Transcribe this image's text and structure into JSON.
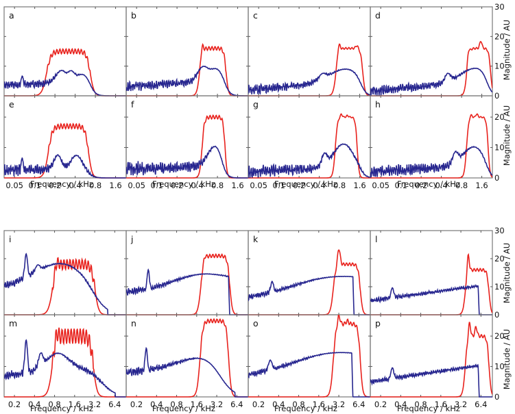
{
  "chart_data": {
    "type": "line",
    "title": "",
    "colors": {
      "red": "#e8211c",
      "blue": "#27268f",
      "axis": "#777777"
    },
    "legend": "none",
    "grid": false,
    "ylabel": "Magnitude / AU",
    "xlabel": "Frequency / kHz",
    "ylim": [
      0,
      30
    ],
    "yticks": [
      "0",
      "10",
      "20",
      "30"
    ],
    "xscale": "log",
    "groups": [
      {
        "name": "top",
        "xlim": [
          0.035,
          2.3
        ],
        "xticks": [
          "0.05",
          "0.1",
          "0.2",
          "0.4",
          "0.8",
          "1.6"
        ],
        "xtick_values": [
          0.05,
          0.1,
          0.2,
          0.4,
          0.8,
          1.6
        ]
      },
      {
        "name": "bottom",
        "xlim": [
          0.14,
          9.5
        ],
        "xticks": [
          "0.2",
          "0.4",
          "0.8",
          "1.6",
          "3.2",
          "6.4"
        ],
        "xtick_values": [
          0.2,
          0.4,
          0.8,
          1.6,
          3.2,
          6.4
        ]
      }
    ],
    "panels": [
      {
        "letter": "a",
        "group": 0,
        "row": 0,
        "col": 0,
        "red": {
          "lo": 0.12,
          "hi": 0.75,
          "level": 15,
          "ripple": 0.8,
          "peaks": []
        },
        "blue": {
          "base": [
            3.5,
            5.5
          ],
          "noise": 1.4,
          "bumps": [
            [
              0.065,
              7,
              0.02
            ],
            [
              0.25,
              9,
              0.12
            ],
            [
              0.35,
              9,
              0.08
            ],
            [
              0.55,
              8,
              0.18
            ]
          ],
          "cut": 0.85,
          "cutShape": "smooth"
        }
      },
      {
        "letter": "b",
        "group": 0,
        "row": 0,
        "col": 1,
        "red": {
          "lo": 0.38,
          "hi": 1.15,
          "level": 16,
          "ripple": 0.6,
          "peaks": [
            [
              0.47,
              19
            ],
            [
              1.02,
              16
            ]
          ]
        },
        "blue": {
          "base": [
            3,
            6
          ],
          "noise": 1.6,
          "bumps": [
            [
              0.5,
              10.5,
              0.12
            ],
            [
              0.8,
              10,
              0.2
            ]
          ],
          "cut": 1.3,
          "cutShape": "smooth"
        }
      },
      {
        "letter": "c",
        "group": 0,
        "row": 0,
        "col": 2,
        "red": {
          "lo": 0.62,
          "hi": 1.9,
          "level": 16,
          "peaks": [
            [
              0.78,
              19
            ],
            [
              1.45,
              17
            ]
          ],
          "ripple": 0.3
        },
        "blue": {
          "base": [
            2,
            5.5
          ],
          "noise": 1.5,
          "bumps": [
            [
              0.45,
              7,
              0.08
            ],
            [
              1.0,
              9.5,
              0.35
            ]
          ],
          "cut": 2.1,
          "cutShape": "smooth"
        }
      },
      {
        "letter": "d",
        "group": 0,
        "row": 0,
        "col": 3,
        "red": {
          "lo": 0.85,
          "hi": 2.3,
          "level": 16,
          "peaks": [
            [
              1.0,
              19
            ],
            [
              1.55,
              18.5
            ]
          ],
          "ripple": 0.3
        },
        "blue": {
          "base": [
            1.5,
            5.5
          ],
          "noise": 1.5,
          "bumps": [
            [
              0.5,
              7.5,
              0.06
            ],
            [
              1.4,
              10,
              0.35
            ]
          ],
          "cut": 2.4,
          "cutShape": "smooth"
        }
      },
      {
        "letter": "e",
        "group": 0,
        "row": 1,
        "col": 0,
        "red": {
          "lo": 0.13,
          "hi": 0.7,
          "level": 17,
          "ripple": 0.8,
          "peaks": []
        },
        "blue": {
          "base": [
            2.5,
            3.5
          ],
          "noise": 1.8,
          "bumps": [
            [
              0.065,
              7,
              0.02
            ],
            [
              0.22,
              8,
              0.08
            ],
            [
              0.42,
              8,
              0.12
            ]
          ],
          "cut": 0.8,
          "cutShape": "smooth"
        }
      },
      {
        "letter": "f",
        "group": 0,
        "row": 1,
        "col": 1,
        "red": {
          "lo": 0.42,
          "hi": 1.1,
          "level": 20,
          "ripple": 0.6,
          "peaks": []
        },
        "blue": {
          "base": [
            3,
            4
          ],
          "noise": 2.2,
          "bumps": [
            [
              0.78,
              12,
              0.18
            ]
          ],
          "cut": 1.2,
          "cutShape": "smooth"
        }
      },
      {
        "letter": "g",
        "group": 0,
        "row": 1,
        "col": 2,
        "red": {
          "lo": 0.62,
          "hi": 1.55,
          "level": 20,
          "peaks": [
            [
              0.85,
              21
            ],
            [
              1.05,
              20.5
            ]
          ],
          "ripple": 0.2
        },
        "blue": {
          "base": [
            2,
            4
          ],
          "noise": 2.0,
          "bumps": [
            [
              0.48,
              8,
              0.06
            ],
            [
              0.92,
              12,
              0.22
            ]
          ],
          "cut": 2.1,
          "cutShape": "smooth"
        }
      },
      {
        "letter": "h",
        "group": 0,
        "row": 1,
        "col": 3,
        "red": {
          "lo": 0.85,
          "hi": 2.1,
          "level": 20,
          "peaks": [
            [
              1.1,
              21
            ],
            [
              1.35,
              21
            ]
          ],
          "ripple": 0.2
        },
        "blue": {
          "base": [
            2,
            4.5
          ],
          "noise": 2.0,
          "bumps": [
            [
              0.65,
              8.5,
              0.06
            ],
            [
              1.25,
              11,
              0.25
            ]
          ],
          "cut": 2.4,
          "cutShape": "smooth"
        }
      },
      {
        "letter": "i",
        "group": 1,
        "row": 2,
        "col": 0,
        "red": {
          "lo": 0.6,
          "hi": 3.6,
          "level": 18,
          "ripple": 1.8,
          "peaks": [
            [
              0.85,
              21
            ]
          ]
        },
        "blue": {
          "base": [
            10,
            17
          ],
          "noise": 1.4,
          "bumps": [
            [
              0.3,
              24,
              0.03
            ],
            [
              0.45,
              17,
              0.05
            ],
            [
              1.0,
              19,
              0.5
            ]
          ],
          "cut": 5.0,
          "cutShape": "taper"
        }
      },
      {
        "letter": "j",
        "group": 1,
        "row": 2,
        "col": 1,
        "red": {
          "lo": 1.6,
          "hi": 5.4,
          "level": 21,
          "ripple": 0.6,
          "peaks": [
            [
              2.1,
              22
            ]
          ]
        },
        "blue": {
          "base": [
            8,
            12
          ],
          "noise": 1.2,
          "bumps": [
            [
              0.3,
              17,
              0.025
            ],
            [
              2.2,
              15,
              0.6
            ]
          ],
          "cut": 4.8,
          "cutShape": "sharp"
        }
      },
      {
        "letter": "k",
        "group": 1,
        "row": 2,
        "col": 2,
        "red": {
          "lo": 2.3,
          "hi": 7.2,
          "level": 18,
          "ripple": 0.5,
          "peaks": [
            [
              3.2,
              24
            ],
            [
              5.1,
              18
            ]
          ]
        },
        "blue": {
          "base": [
            6,
            12
          ],
          "noise": 1.0,
          "bumps": [
            [
              0.32,
              12,
              0.03
            ],
            [
              3.5,
              14,
              0.8
            ]
          ],
          "cut": 5.2,
          "cutShape": "sharp"
        }
      },
      {
        "letter": "l",
        "group": 1,
        "row": 2,
        "col": 3,
        "red": {
          "lo": 3.3,
          "hi": 9.0,
          "level": 16,
          "ripple": 0.5,
          "peaks": [
            [
              4.1,
              23
            ],
            [
              5.8,
              16
            ]
          ]
        },
        "blue": {
          "base": [
            5,
            11
          ],
          "noise": 0.8,
          "bumps": [
            [
              0.3,
              10,
              0.03
            ]
          ],
          "cut": 5.8,
          "cutShape": "sharp"
        }
      },
      {
        "letter": "m",
        "group": 1,
        "row": 3,
        "col": 0,
        "red": {
          "lo": 0.6,
          "hi": 3.4,
          "level": 20,
          "ripple": 2.5,
          "peaks": [
            [
              0.85,
              23
            ]
          ]
        },
        "blue": {
          "base": [
            7,
            11
          ],
          "noise": 1.4,
          "bumps": [
            [
              0.3,
              20,
              0.03
            ],
            [
              0.5,
              15,
              0.05
            ],
            [
              0.9,
              15,
              0.25
            ]
          ],
          "cut": 6.5,
          "cutShape": "taper"
        }
      },
      {
        "letter": "n",
        "group": 1,
        "row": 3,
        "col": 1,
        "red": {
          "lo": 1.55,
          "hi": 5.2,
          "level": 25,
          "ripple": 0.6,
          "peaks": []
        },
        "blue": {
          "base": [
            8,
            11
          ],
          "noise": 1.3,
          "bumps": [
            [
              0.28,
              17,
              0.025
            ],
            [
              2.5,
              14,
              0.6
            ]
          ],
          "cut": 6.0,
          "cutShape": "taper"
        }
      },
      {
        "letter": "o",
        "group": 1,
        "row": 3,
        "col": 2,
        "red": {
          "lo": 2.3,
          "hi": 7.2,
          "level": 24,
          "ripple": 0.6,
          "peaks": [
            [
              3.2,
              27
            ],
            [
              4.3,
              25
            ]
          ]
        },
        "blue": {
          "base": [
            7,
            12
          ],
          "noise": 1.0,
          "bumps": [
            [
              0.3,
              12,
              0.04
            ],
            [
              3.3,
              15,
              0.8
            ]
          ],
          "cut": 5.0,
          "cutShape": "sharp"
        }
      },
      {
        "letter": "p",
        "group": 1,
        "row": 3,
        "col": 3,
        "red": {
          "lo": 3.3,
          "hi": 9.0,
          "level": 20,
          "ripple": 0.5,
          "peaks": [
            [
              4.3,
              25
            ],
            [
              5.4,
              23
            ]
          ]
        },
        "blue": {
          "base": [
            5,
            11
          ],
          "noise": 0.8,
          "bumps": [
            [
              0.3,
              10,
              0.03
            ]
          ],
          "cut": 5.8,
          "cutShape": "sharp"
        }
      }
    ]
  }
}
